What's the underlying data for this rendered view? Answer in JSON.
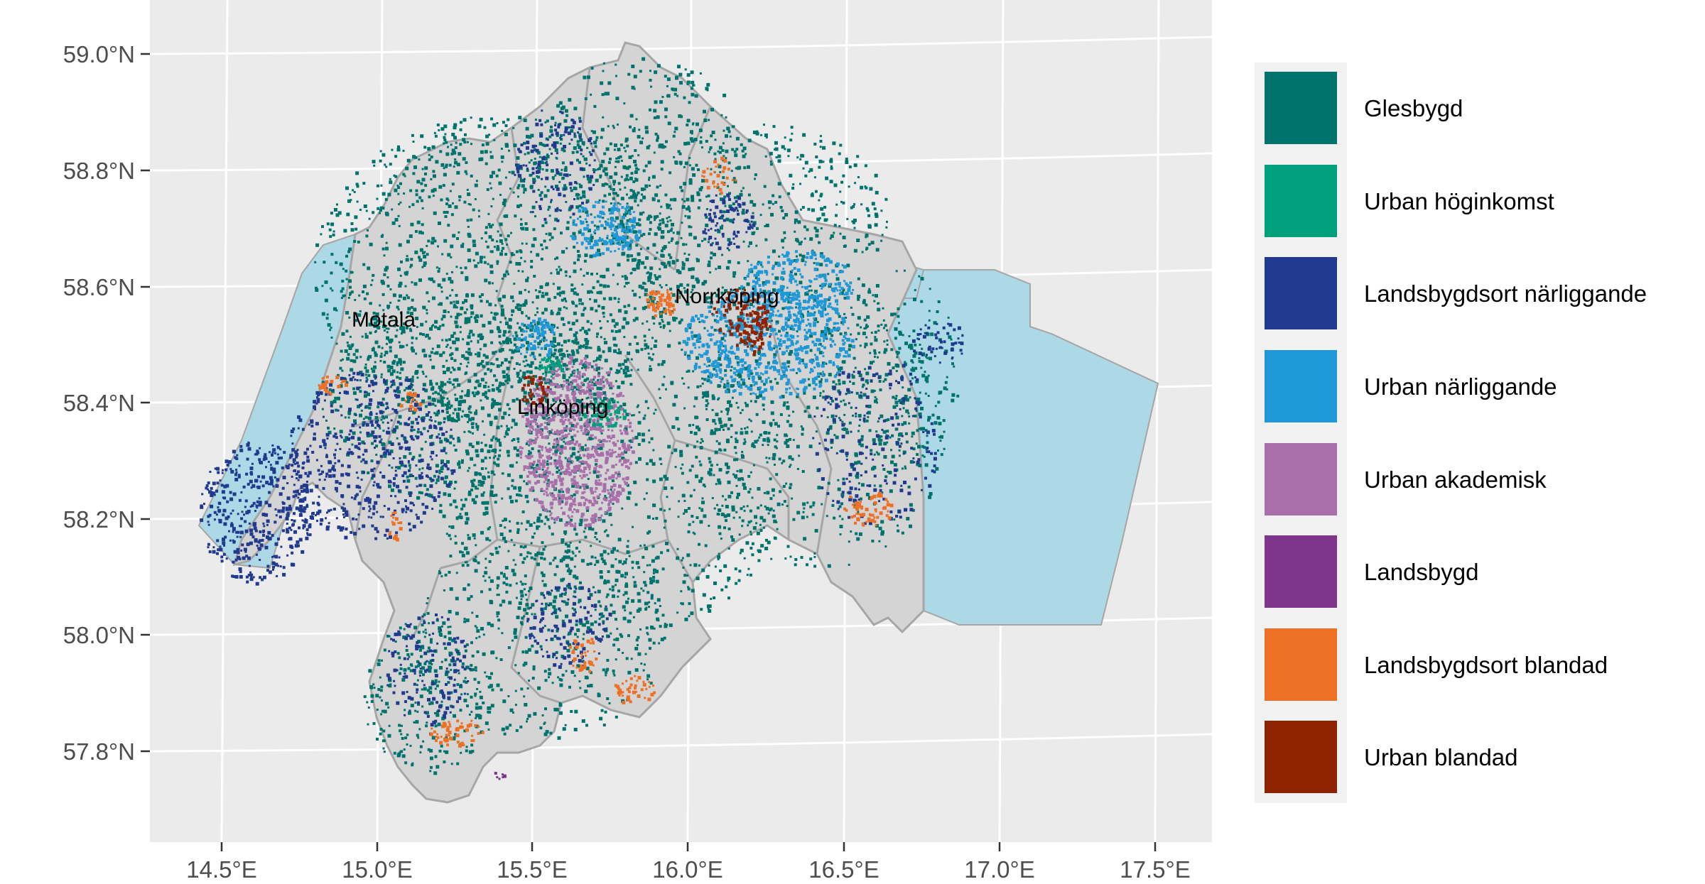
{
  "map": {
    "x_ticks": [
      "14.5°E",
      "15.0°E",
      "15.5°E",
      "16.0°E",
      "16.5°E",
      "17.0°E",
      "17.5°E"
    ],
    "y_ticks": [
      "59.0°N",
      "58.8°N",
      "58.6°N",
      "58.4°N",
      "58.2°N",
      "58.0°N",
      "57.8°N"
    ],
    "colors": {
      "panel": "#ebebeb",
      "grid": "#ffffff",
      "land": "#d4d4d4",
      "border": "#a6a6a6",
      "water": "#add8e6"
    },
    "cities": [
      {
        "name": "Motala",
        "lon": 14.92,
        "lat": 58.537
      },
      {
        "name": "Norrköping",
        "lon": 15.93,
        "lat": 58.58
      },
      {
        "name": "Linköping",
        "lon": 15.47,
        "lat": 58.39
      }
    ]
  },
  "legend": {
    "items": [
      {
        "label": "Glesbygd",
        "color": "#00746c"
      },
      {
        "label": "Urban höginkomst",
        "color": "#00a07c"
      },
      {
        "label": "Landsbygdsort närliggande",
        "color": "#1f3a8f"
      },
      {
        "label": "Urban närliggande",
        "color": "#1e98d6"
      },
      {
        "label": "Urban akademisk",
        "color": "#a86fab"
      },
      {
        "label": "Landsbygd",
        "color": "#7f358c"
      },
      {
        "label": "Landsbygdsort blandad",
        "color": "#ee7024"
      },
      {
        "label": "Urban blandad",
        "color": "#8f2200"
      }
    ]
  }
}
